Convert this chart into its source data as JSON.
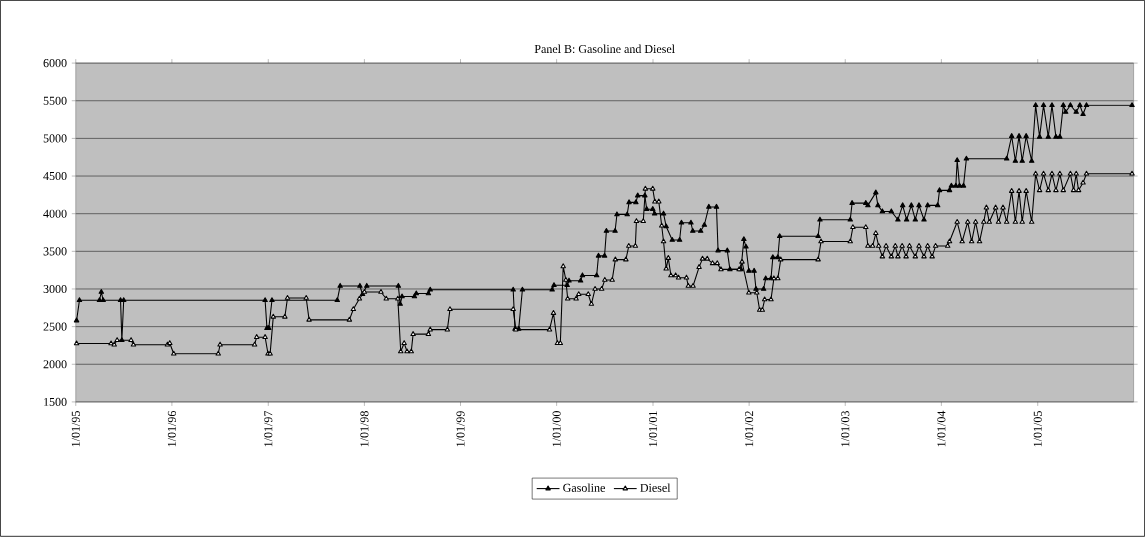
{
  "chart_data": {
    "type": "line",
    "title": "Panel B: Gasoline and Diesel",
    "xlim": [
      "1995-01-01",
      "2005-12-31"
    ],
    "xticks": [
      {
        "value": "1995-01-01",
        "label": "1/01/95"
      },
      {
        "value": "1996-01-01",
        "label": "1/01/96"
      },
      {
        "value": "1997-01-01",
        "label": "1/01/97"
      },
      {
        "value": "1998-01-01",
        "label": "1/01/98"
      },
      {
        "value": "1999-01-01",
        "label": "1/01/99"
      },
      {
        "value": "2000-01-01",
        "label": "1/01/00"
      },
      {
        "value": "2001-01-01",
        "label": "1/01/01"
      },
      {
        "value": "2002-01-01",
        "label": "1/01/02"
      },
      {
        "value": "2003-01-01",
        "label": "1/01/03"
      },
      {
        "value": "2004-01-01",
        "label": "1/01/04"
      },
      {
        "value": "2005-01-01",
        "label": "1/01/05"
      }
    ],
    "ylim": [
      1500,
      6000
    ],
    "yticks": [
      1500,
      2000,
      2500,
      3000,
      3500,
      4000,
      4500,
      5000,
      5500,
      6000
    ],
    "grid": "y",
    "legend": "bottom",
    "marker": "triangle",
    "line_style": "solid",
    "series": [
      {
        "name": "Gasoline",
        "color": "#000000",
        "x": [
          "1995-01-04",
          "1995-01-15",
          "1995-04-01",
          "1995-04-08",
          "1995-04-15",
          "1995-06-20",
          "1995-06-25",
          "1995-07-02",
          "1996-12-20",
          "1996-12-27",
          "1997-01-03",
          "1997-01-15",
          "1997-09-20",
          "1997-10-01",
          "1997-12-15",
          "1997-12-25",
          "1998-01-10",
          "1998-05-10",
          "1998-05-17",
          "1998-05-24",
          "1998-07-10",
          "1998-07-17",
          "1998-09-01",
          "1998-09-08",
          "1999-07-20",
          "1999-07-27",
          "1999-08-10",
          "1999-08-24",
          "1999-12-15",
          "1999-12-22",
          "2000-02-10",
          "2000-02-17",
          "2000-04-01",
          "2000-04-08",
          "2000-06-01",
          "2000-06-08",
          "2000-07-01",
          "2000-07-08",
          "2000-08-10",
          "2000-08-17",
          "2000-09-25",
          "2000-10-02",
          "2000-10-28",
          "2000-11-04",
          "2000-12-01",
          "2000-12-08",
          "2000-12-31",
          "2001-01-07",
          "2001-02-10",
          "2001-02-20",
          "2001-03-15",
          "2001-04-12",
          "2001-04-19",
          "2001-05-25",
          "2001-06-01",
          "2001-07-01",
          "2001-07-15",
          "2001-08-01",
          "2001-08-30",
          "2001-09-05",
          "2001-10-10",
          "2001-10-20",
          "2001-12-01",
          "2001-12-12",
          "2001-12-20",
          "2001-12-31",
          "2002-01-20",
          "2002-01-27",
          "2002-02-25",
          "2002-03-05",
          "2002-03-25",
          "2002-04-01",
          "2002-04-20",
          "2002-04-27",
          "2002-09-20",
          "2002-09-27",
          "2003-01-20",
          "2003-01-27",
          "2003-03-20",
          "2003-03-28",
          "2003-04-27",
          "2003-05-05",
          "2003-05-22",
          "2003-06-25",
          "2003-07-20",
          "2003-08-07",
          "2003-08-22",
          "2003-09-09",
          "2003-09-24",
          "2003-10-08",
          "2003-10-27",
          "2003-11-10",
          "2003-12-18",
          "2003-12-25",
          "2004-02-01",
          "2004-02-08",
          "2004-02-25",
          "2004-03-01",
          "2004-03-10",
          "2004-03-25",
          "2004-04-05",
          "2004-09-05",
          "2004-09-24",
          "2004-10-08",
          "2004-10-22",
          "2004-11-03",
          "2004-11-18",
          "2004-12-09",
          "2004-12-24",
          "2005-01-08",
          "2005-01-23",
          "2005-02-10",
          "2005-02-24",
          "2005-03-11",
          "2005-03-26",
          "2005-04-08",
          "2005-04-17",
          "2005-05-05",
          "2005-05-27",
          "2005-06-10",
          "2005-06-22",
          "2005-07-05",
          "2005-12-25"
        ],
        "values": [
          2580,
          2850,
          2850,
          2960,
          2850,
          2850,
          2320,
          2850,
          2850,
          2480,
          2480,
          2850,
          2850,
          3040,
          3040,
          2930,
          3040,
          3040,
          2800,
          2900,
          2900,
          2940,
          2940,
          2990,
          2990,
          2470,
          2470,
          2990,
          2990,
          3050,
          3050,
          3110,
          3110,
          3180,
          3180,
          3440,
          3440,
          3770,
          3770,
          3990,
          3990,
          4150,
          4150,
          4240,
          4240,
          4060,
          4060,
          4000,
          4000,
          3830,
          3650,
          3650,
          3880,
          3880,
          3770,
          3770,
          3850,
          4090,
          4090,
          3510,
          3510,
          3260,
          3260,
          3660,
          3560,
          3240,
          3240,
          3000,
          3000,
          3140,
          3140,
          3420,
          3420,
          3700,
          3700,
          3920,
          3920,
          4140,
          4140,
          4110,
          4280,
          4110,
          4030,
          4030,
          3920,
          4110,
          3920,
          4110,
          3920,
          4110,
          3920,
          4110,
          4110,
          4310,
          4310,
          4370,
          4370,
          4710,
          4370,
          4370,
          4730,
          4730,
          5030,
          4700,
          5030,
          4700,
          5030,
          4700,
          5440,
          5020,
          5440,
          5020,
          5440,
          5020,
          5020,
          5440,
          5350,
          5440,
          5350,
          5440,
          5320,
          5440,
          5440
        ]
      },
      {
        "name": "Diesel",
        "color": "#000000",
        "x": [
          "1995-01-04",
          "1995-05-15",
          "1995-05-27",
          "1995-06-07",
          "1995-07-30",
          "1995-08-08",
          "1995-12-15",
          "1995-12-24",
          "1996-01-08",
          "1996-06-25",
          "1996-07-02",
          "1996-11-10",
          "1996-11-18",
          "1996-12-20",
          "1996-12-31",
          "1997-01-08",
          "1997-01-20",
          "1997-03-05",
          "1997-03-15",
          "1997-05-25",
          "1997-06-05",
          "1997-11-05",
          "1997-11-20",
          "1997-12-13",
          "1998-01-01",
          "1998-03-05",
          "1998-03-25",
          "1998-05-08",
          "1998-05-19",
          "1998-06-01",
          "1998-06-12",
          "1998-06-28",
          "1998-07-05",
          "1998-09-01",
          "1998-09-08",
          "1998-11-12",
          "1998-11-22",
          "1999-07-20",
          "1999-07-30",
          "1999-12-05",
          "1999-12-20",
          "2000-01-04",
          "2000-01-15",
          "2000-01-26",
          "2000-02-05",
          "2000-02-12",
          "2000-03-15",
          "2000-03-25",
          "2000-04-30",
          "2000-05-12",
          "2000-05-26",
          "2000-06-20",
          "2000-07-02",
          "2000-07-30",
          "2000-08-11",
          "2000-09-20",
          "2000-10-01",
          "2000-10-26",
          "2000-10-30",
          "2000-11-25",
          "2000-12-03",
          "2000-12-31",
          "2001-01-08",
          "2001-01-23",
          "2001-02-03",
          "2001-02-10",
          "2001-02-20",
          "2001-02-28",
          "2001-03-10",
          "2001-03-28",
          "2001-04-08",
          "2001-05-08",
          "2001-05-15",
          "2001-06-02",
          "2001-06-25",
          "2001-07-08",
          "2001-07-26",
          "2001-08-15",
          "2001-09-02",
          "2001-09-16",
          "2001-11-24",
          "2001-12-05",
          "2001-12-31",
          "2002-01-30",
          "2002-02-10",
          "2002-02-20",
          "2002-03-01",
          "2002-03-25",
          "2002-04-05",
          "2002-04-20",
          "2002-05-01",
          "2002-09-20",
          "2002-10-01",
          "2003-01-20",
          "2003-01-30",
          "2003-03-20",
          "2003-03-28",
          "2003-04-15",
          "2003-04-27",
          "2003-05-08",
          "2003-05-22",
          "2003-06-05",
          "2003-06-25",
          "2003-07-10",
          "2003-07-20",
          "2003-08-05",
          "2003-08-20",
          "2003-09-02",
          "2003-09-24",
          "2003-10-08",
          "2003-10-27",
          "2003-11-10",
          "2003-11-27",
          "2003-12-10",
          "2004-01-25",
          "2004-02-01",
          "2004-03-01",
          "2004-03-20",
          "2004-04-10",
          "2004-04-25",
          "2004-05-10",
          "2004-05-25",
          "2004-06-10",
          "2004-06-20",
          "2004-07-01",
          "2004-07-25",
          "2004-08-05",
          "2004-08-22",
          "2004-09-05",
          "2004-09-24",
          "2004-10-08",
          "2004-10-22",
          "2004-11-03",
          "2004-11-18",
          "2004-12-09",
          "2004-12-24",
          "2005-01-08",
          "2005-01-23",
          "2005-02-10",
          "2005-02-24",
          "2005-03-11",
          "2005-03-26",
          "2005-04-08",
          "2005-05-05",
          "2005-05-17",
          "2005-05-27",
          "2005-06-05",
          "2005-06-22",
          "2005-07-05",
          "2005-12-25"
        ],
        "values": [
          2275,
          2275,
          2260,
          2320,
          2320,
          2260,
          2260,
          2280,
          2140,
          2140,
          2260,
          2260,
          2360,
          2360,
          2140,
          2140,
          2630,
          2630,
          2880,
          2880,
          2590,
          2590,
          2730,
          2870,
          2960,
          2960,
          2870,
          2870,
          2170,
          2280,
          2170,
          2170,
          2400,
          2400,
          2460,
          2460,
          2730,
          2730,
          2460,
          2460,
          2680,
          2280,
          2280,
          3300,
          3120,
          2870,
          2870,
          2930,
          2930,
          2800,
          3000,
          3000,
          3120,
          3120,
          3390,
          3390,
          3570,
          3570,
          3900,
          3900,
          4330,
          4330,
          4160,
          4160,
          3840,
          3630,
          3270,
          3410,
          3180,
          3180,
          3150,
          3150,
          3040,
          3040,
          3290,
          3400,
          3400,
          3340,
          3340,
          3260,
          3260,
          3360,
          2950,
          2950,
          2720,
          2720,
          2860,
          2860,
          3140,
          3140,
          3390,
          3390,
          3630,
          3630,
          3820,
          3820,
          3570,
          3570,
          3740,
          3570,
          3430,
          3570,
          3430,
          3570,
          3430,
          3570,
          3430,
          3570,
          3430,
          3570,
          3430,
          3570,
          3430,
          3570,
          3570,
          3630,
          3890,
          3630,
          3890,
          3630,
          3890,
          3630,
          3890,
          4080,
          3890,
          4080,
          3890,
          4080,
          3890,
          4300,
          3890,
          4300,
          3890,
          4300,
          3890,
          4530,
          4310,
          4530,
          4310,
          4530,
          4310,
          4530,
          4310,
          4530,
          4310,
          4530,
          4310,
          4410,
          4530,
          4530
        ]
      }
    ]
  }
}
